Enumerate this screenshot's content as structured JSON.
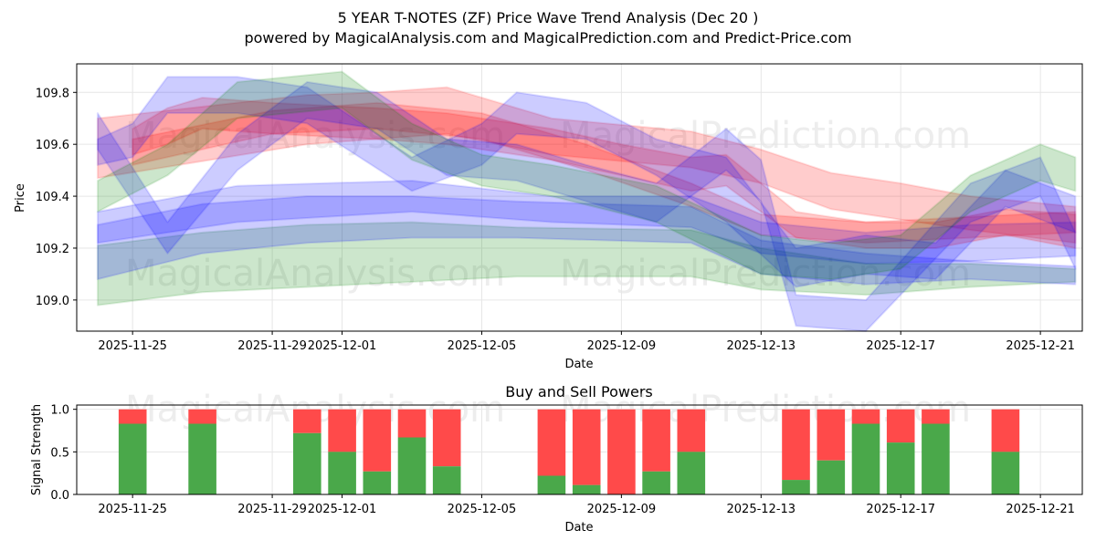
{
  "chart_data": [
    {
      "type": "area",
      "title": "5 YEAR T-NOTES (ZF) Price Wave Trend Analysis (Dec 20 )",
      "subtitle": "powered by MagicalAnalysis.com and MagicalPrediction.com and Predict-Price.com",
      "xlabel": "Date",
      "ylabel": "Price",
      "xlim": [
        "2025-11-23.6",
        "2025-12-22.2"
      ],
      "ylim": [
        108.88,
        109.91
      ],
      "x_ticks": [
        "2025-11-25",
        "2025-11-29",
        "2025-12-01",
        "2025-12-05",
        "2025-12-09",
        "2025-12-13",
        "2025-12-17",
        "2025-12-21"
      ],
      "y_ticks": [
        109.0,
        109.2,
        109.4,
        109.6,
        109.8
      ],
      "watermarks": [
        "MagicalAnalysis.com",
        "MagicalPrediction.com",
        "MagicalAnalysis.com",
        "MagicalPrediction.com"
      ],
      "colors": {
        "red": "#ff0000",
        "green": "#008000",
        "blue": "#0000ff"
      },
      "bands": [
        {
          "name": "red-trend-upper",
          "color": "red",
          "days": [
            0,
            6,
            8,
            10,
            13,
            17,
            19,
            21,
            23,
            25,
            28
          ],
          "upper": [
            109.7,
            109.79,
            109.8,
            109.82,
            109.7,
            109.65,
            109.58,
            109.49,
            109.45,
            109.4,
            109.36
          ],
          "lower": [
            109.47,
            109.6,
            109.62,
            109.64,
            109.56,
            109.51,
            109.45,
            109.35,
            109.31,
            109.27,
            109.22
          ]
        },
        {
          "name": "orange-mid",
          "color": "red",
          "days": [
            1,
            5,
            8,
            11,
            14,
            17,
            19,
            22,
            25,
            28
          ],
          "upper": [
            109.62,
            109.73,
            109.76,
            109.72,
            109.6,
            109.45,
            109.33,
            109.3,
            109.32,
            109.34
          ],
          "lower": [
            109.52,
            109.64,
            109.66,
            109.62,
            109.5,
            109.36,
            109.25,
            109.22,
            109.24,
            109.26
          ]
        },
        {
          "name": "green-lower",
          "color": "green",
          "days": [
            0,
            3,
            6,
            9,
            12,
            17,
            19,
            22,
            25,
            28
          ],
          "upper": [
            109.21,
            109.26,
            109.29,
            109.3,
            109.28,
            109.27,
            109.2,
            109.14,
            109.14,
            109.12
          ],
          "lower": [
            108.98,
            109.03,
            109.05,
            109.07,
            109.09,
            109.09,
            109.04,
            109.02,
            109.05,
            109.07
          ]
        },
        {
          "name": "blue-lower",
          "color": "blue",
          "days": [
            0,
            3,
            6,
            9,
            12,
            17,
            19,
            22,
            25,
            28
          ],
          "upper": [
            109.29,
            109.37,
            109.4,
            109.4,
            109.38,
            109.36,
            109.23,
            109.18,
            109.15,
            109.13
          ],
          "lower": [
            109.08,
            109.18,
            109.22,
            109.24,
            109.24,
            109.22,
            109.1,
            109.06,
            109.08,
            109.06
          ]
        },
        {
          "name": "blue-mid",
          "color": "blue",
          "days": [
            0,
            4,
            9,
            13,
            17,
            19,
            22,
            25,
            28
          ],
          "upper": [
            109.34,
            109.44,
            109.46,
            109.4,
            109.4,
            109.3,
            109.26,
            109.29,
            109.3
          ],
          "lower": [
            109.22,
            109.3,
            109.34,
            109.3,
            109.28,
            109.18,
            109.14,
            109.15,
            109.17
          ]
        },
        {
          "name": "purple-wave",
          "color": "red",
          "days": [
            1,
            2,
            3,
            5,
            8,
            10,
            11,
            13,
            15,
            17,
            18,
            20,
            22,
            24,
            26,
            28
          ],
          "upper": [
            109.66,
            109.74,
            109.78,
            109.76,
            109.74,
            109.72,
            109.7,
            109.66,
            109.6,
            109.55,
            109.56,
            109.34,
            109.3,
            109.3,
            109.35,
            109.33
          ],
          "lower": [
            109.56,
            109.6,
            109.66,
            109.64,
            109.62,
            109.6,
            109.58,
            109.54,
            109.48,
            109.42,
            109.44,
            109.24,
            109.2,
            109.2,
            109.25,
            109.2
          ]
        },
        {
          "name": "blue-wave-1",
          "color": "blue",
          "days": [
            0,
            1,
            2,
            4,
            6,
            9,
            11,
            12,
            14,
            16,
            18,
            20,
            22,
            24,
            26,
            28
          ],
          "upper": [
            109.62,
            109.68,
            109.86,
            109.86,
            109.82,
            109.55,
            109.68,
            109.8,
            109.76,
            109.62,
            109.55,
            109.2,
            109.25,
            109.22,
            109.5,
            109.4
          ],
          "lower": [
            109.52,
            109.55,
            109.72,
            109.72,
            109.68,
            109.42,
            109.52,
            109.64,
            109.62,
            109.48,
            109.3,
            109.05,
            109.1,
            109.08,
            109.36,
            109.26
          ]
        },
        {
          "name": "blue-wave-2",
          "color": "blue",
          "days": [
            0,
            2,
            4,
            6,
            8,
            10,
            12,
            14,
            16,
            18,
            19,
            20,
            22,
            24,
            25,
            27,
            28
          ],
          "upper": [
            109.72,
            109.3,
            109.64,
            109.84,
            109.8,
            109.62,
            109.6,
            109.52,
            109.45,
            109.66,
            109.54,
            109.02,
            109.0,
            109.3,
            109.45,
            109.55,
            109.26
          ],
          "lower": [
            109.58,
            109.18,
            109.5,
            109.7,
            109.66,
            109.48,
            109.46,
            109.38,
            109.3,
            109.5,
            109.38,
            108.9,
            108.88,
            109.16,
            109.3,
            109.4,
            109.12
          ]
        },
        {
          "name": "green-wave",
          "color": "green",
          "days": [
            0,
            2,
            4,
            7,
            9,
            11,
            13,
            16,
            19,
            21,
            23,
            25,
            27,
            28
          ],
          "upper": [
            109.46,
            109.6,
            109.84,
            109.88,
            109.68,
            109.56,
            109.52,
            109.44,
            109.25,
            109.22,
            109.25,
            109.48,
            109.6,
            109.55
          ],
          "lower": [
            109.34,
            109.48,
            109.7,
            109.74,
            109.54,
            109.44,
            109.4,
            109.3,
            109.1,
            109.08,
            109.12,
            109.34,
            109.46,
            109.42
          ]
        }
      ]
    },
    {
      "type": "bar",
      "title": "Buy and Sell Powers",
      "xlabel": "Date",
      "ylabel": "Signal Strength",
      "ylim": [
        0,
        1.05
      ],
      "y_ticks": [
        0.0,
        0.5,
        1.0
      ],
      "x_ticks": [
        "2025-11-25",
        "2025-11-29",
        "2025-12-01",
        "2025-12-05",
        "2025-12-09",
        "2025-12-13",
        "2025-12-17",
        "2025-12-21"
      ],
      "colors": {
        "buy": "#4aa84a",
        "sell": "#ff4a4a"
      },
      "series": [
        {
          "date": "2025-11-25",
          "buy": 0.83
        },
        {
          "date": "2025-11-27",
          "buy": 0.83
        },
        {
          "date": "2025-11-30",
          "buy": 0.72
        },
        {
          "date": "2025-12-01",
          "buy": 0.5
        },
        {
          "date": "2025-12-02",
          "buy": 0.27
        },
        {
          "date": "2025-12-03",
          "buy": 0.67
        },
        {
          "date": "2025-12-04",
          "buy": 0.33
        },
        {
          "date": "2025-12-07",
          "buy": 0.22
        },
        {
          "date": "2025-12-08",
          "buy": 0.11
        },
        {
          "date": "2025-12-09",
          "buy": 0.0
        },
        {
          "date": "2025-12-10",
          "buy": 0.27
        },
        {
          "date": "2025-12-11",
          "buy": 0.5
        },
        {
          "date": "2025-12-14",
          "buy": 0.17
        },
        {
          "date": "2025-12-15",
          "buy": 0.4
        },
        {
          "date": "2025-12-16",
          "buy": 0.83
        },
        {
          "date": "2025-12-17",
          "buy": 0.61
        },
        {
          "date": "2025-12-18",
          "buy": 0.83
        },
        {
          "date": "2025-12-20",
          "buy": 0.5
        }
      ]
    }
  ]
}
